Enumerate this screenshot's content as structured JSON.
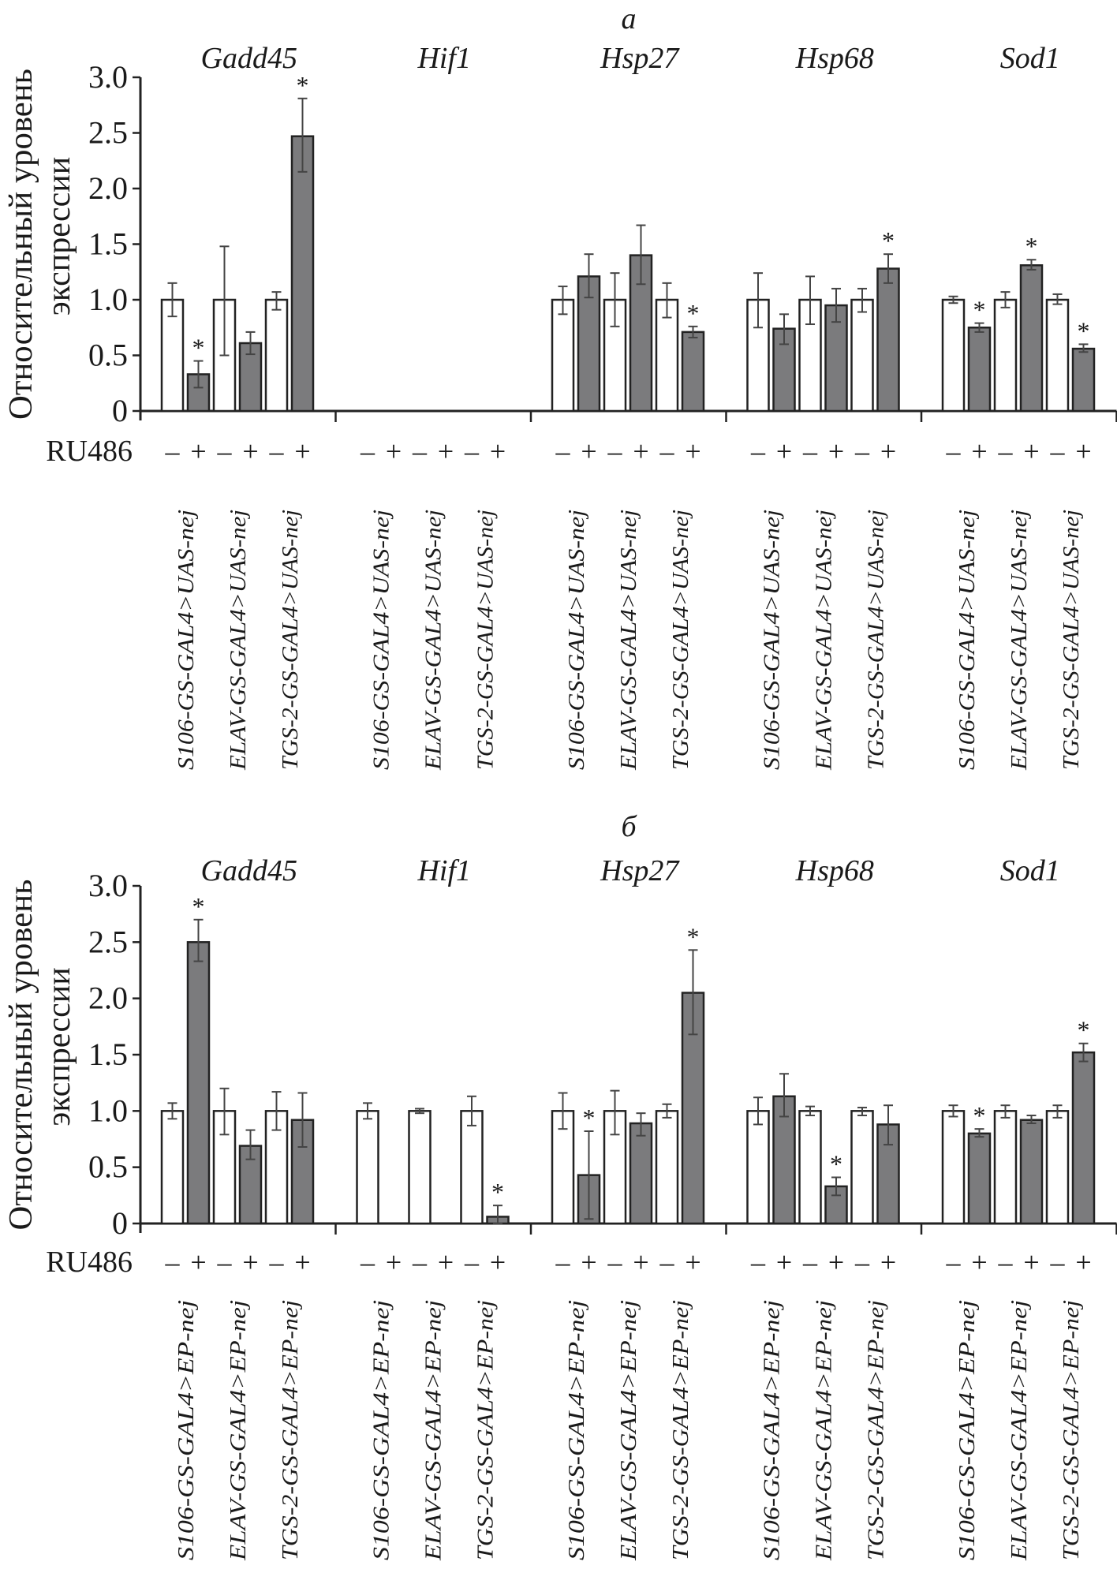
{
  "y_axis_label": [
    "Относительный уровень",
    "экспрессии"
  ],
  "treatment_label": "RU486",
  "colors": {
    "minus_fill": "#ffffff",
    "plus_fill": "#7b7b7d",
    "stroke": "#222222",
    "error_bar": "#444444"
  },
  "chart_data": [
    {
      "type": "bar",
      "panel_label": "а",
      "ylim": [
        0,
        3.0
      ],
      "yticks": [
        "0",
        "0.5",
        "1.0",
        "1.5",
        "2.0",
        "2.5",
        "3.0"
      ],
      "ytick_values": [
        0,
        0.5,
        1.0,
        1.5,
        2.0,
        2.5,
        3.0
      ],
      "conditions": [
        "–",
        "+",
        "–",
        "+",
        "–",
        "+"
      ],
      "lines": [
        "S106-GS-GAL4>UAS-nej",
        "ELAV-GS-GAL4>UAS-nej",
        "TGS-2-GS-GAL4>UAS-nej"
      ],
      "genes": [
        {
          "name": "Gadd45",
          "values": [
            1.0,
            0.33,
            1.0,
            0.61,
            1.0,
            2.47
          ],
          "err": [
            [
              0.85,
              1.15
            ],
            [
              0.21,
              0.45
            ],
            [
              0.5,
              1.48
            ],
            [
              0.51,
              0.71
            ],
            [
              0.91,
              1.07
            ],
            [
              2.15,
              2.81
            ]
          ],
          "sig": [
            false,
            true,
            false,
            false,
            false,
            true
          ]
        },
        {
          "name": "Hif1",
          "values": [
            null,
            null,
            null,
            null,
            null,
            null
          ],
          "err": [
            null,
            null,
            null,
            null,
            null,
            null
          ],
          "sig": [
            false,
            false,
            false,
            false,
            false,
            false
          ]
        },
        {
          "name": "Hsp27",
          "values": [
            1.0,
            1.21,
            1.0,
            1.4,
            1.0,
            0.71
          ],
          "err": [
            [
              0.87,
              1.12
            ],
            [
              1.02,
              1.41
            ],
            [
              0.76,
              1.24
            ],
            [
              1.14,
              1.67
            ],
            [
              0.84,
              1.15
            ],
            [
              0.66,
              0.76
            ]
          ],
          "sig": [
            false,
            false,
            false,
            false,
            false,
            true
          ]
        },
        {
          "name": "Hsp68",
          "values": [
            1.0,
            0.74,
            1.0,
            0.95,
            1.0,
            1.28
          ],
          "err": [
            [
              0.75,
              1.24
            ],
            [
              0.6,
              0.87
            ],
            [
              0.78,
              1.21
            ],
            [
              0.8,
              1.1
            ],
            [
              0.89,
              1.1
            ],
            [
              1.15,
              1.41
            ]
          ],
          "sig": [
            false,
            false,
            false,
            false,
            false,
            true
          ]
        },
        {
          "name": "Sod1",
          "values": [
            1.0,
            0.75,
            1.0,
            1.31,
            1.0,
            0.56
          ],
          "err": [
            [
              0.97,
              1.03
            ],
            [
              0.71,
              0.79
            ],
            [
              0.93,
              1.07
            ],
            [
              1.27,
              1.36
            ],
            [
              0.96,
              1.05
            ],
            [
              0.53,
              0.6
            ]
          ],
          "sig": [
            false,
            true,
            false,
            true,
            false,
            true
          ]
        }
      ]
    },
    {
      "type": "bar",
      "panel_label": "б",
      "ylim": [
        0,
        3.0
      ],
      "yticks": [
        "0",
        "0.5",
        "1.0",
        "1.5",
        "2.0",
        "2.5",
        "3.0"
      ],
      "ytick_values": [
        0,
        0.5,
        1.0,
        1.5,
        2.0,
        2.5,
        3.0
      ],
      "conditions": [
        "–",
        "+",
        "–",
        "+",
        "–",
        "+"
      ],
      "lines": [
        "S106-GS-GAL4>EP-nej",
        "ELAV-GS-GAL4>EP-nej",
        "TGS-2-GS-GAL4>EP-nej"
      ],
      "genes": [
        {
          "name": "Gadd45",
          "values": [
            1.0,
            2.5,
            1.0,
            0.69,
            1.0,
            0.92
          ],
          "err": [
            [
              0.93,
              1.07
            ],
            [
              2.33,
              2.7
            ],
            [
              0.79,
              1.2
            ],
            [
              0.57,
              0.83
            ],
            [
              0.83,
              1.17
            ],
            [
              0.68,
              1.16
            ]
          ],
          "sig": [
            false,
            true,
            false,
            false,
            false,
            false
          ]
        },
        {
          "name": "Hif1",
          "values": [
            1.0,
            null,
            1.0,
            null,
            1.0,
            0.06
          ],
          "err": [
            [
              0.93,
              1.07
            ],
            null,
            [
              0.98,
              1.02
            ],
            null,
            [
              0.87,
              1.13
            ],
            [
              0.0,
              0.16
            ]
          ],
          "sig": [
            false,
            false,
            false,
            false,
            false,
            true
          ]
        },
        {
          "name": "Hsp27",
          "values": [
            1.0,
            0.43,
            1.0,
            0.89,
            1.0,
            2.05
          ],
          "err": [
            [
              0.84,
              1.16
            ],
            [
              0.04,
              0.82
            ],
            [
              0.79,
              1.18
            ],
            [
              0.78,
              0.98
            ],
            [
              0.94,
              1.06
            ],
            [
              1.68,
              2.43
            ]
          ],
          "sig": [
            false,
            true,
            false,
            false,
            false,
            true
          ]
        },
        {
          "name": "Hsp68",
          "values": [
            1.0,
            1.13,
            1.0,
            0.33,
            1.0,
            0.88
          ],
          "err": [
            [
              0.88,
              1.12
            ],
            [
              0.95,
              1.33
            ],
            [
              0.96,
              1.04
            ],
            [
              0.25,
              0.41
            ],
            [
              0.96,
              1.03
            ],
            [
              0.7,
              1.05
            ]
          ],
          "sig": [
            false,
            false,
            false,
            true,
            false,
            false
          ]
        },
        {
          "name": "Sod1",
          "values": [
            1.0,
            0.8,
            1.0,
            0.92,
            1.0,
            1.52
          ],
          "err": [
            [
              0.95,
              1.05
            ],
            [
              0.77,
              0.84
            ],
            [
              0.94,
              1.05
            ],
            [
              0.89,
              0.96
            ],
            [
              0.94,
              1.05
            ],
            [
              1.44,
              1.6
            ]
          ],
          "sig": [
            false,
            true,
            false,
            false,
            false,
            true
          ]
        }
      ]
    }
  ]
}
